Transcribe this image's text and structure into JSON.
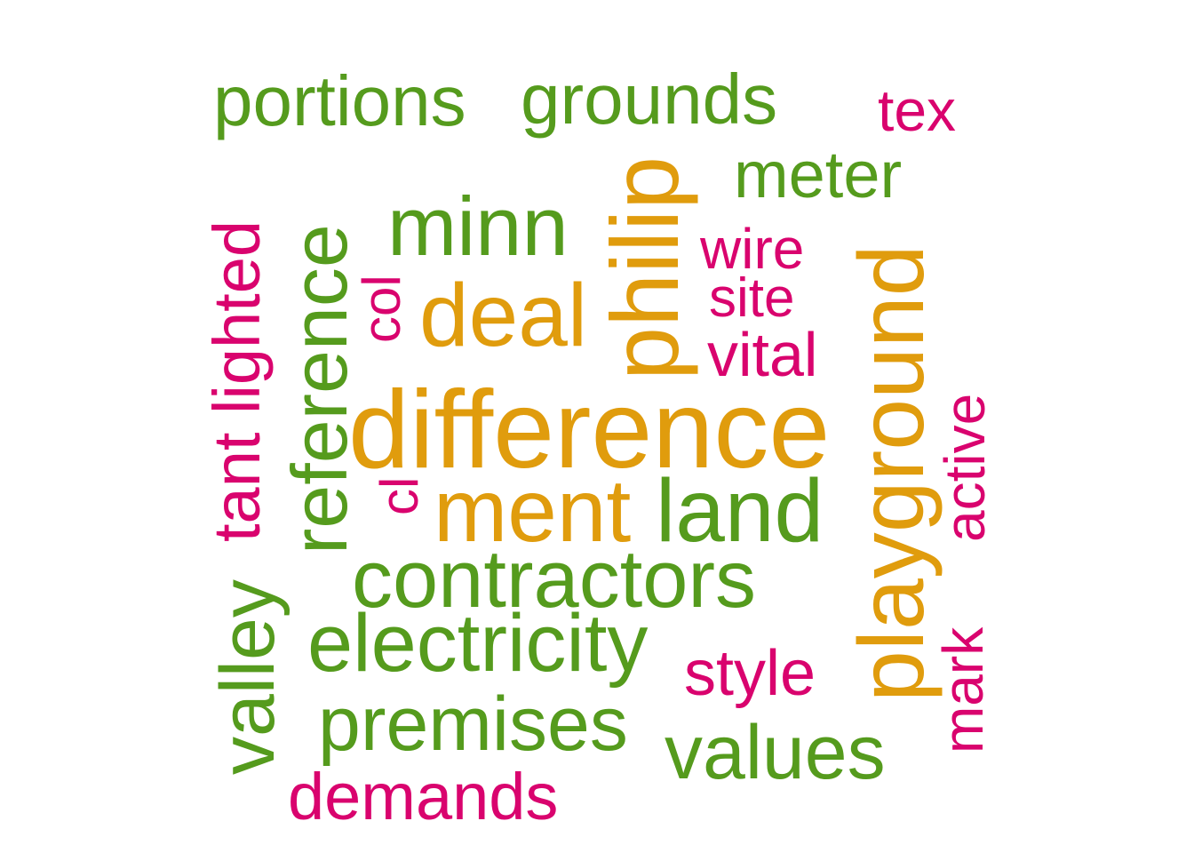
{
  "palette": {
    "green": "#559b1d",
    "orange": "#e09c0d",
    "magenta": "#d9036e"
  },
  "words": {
    "portions": "portions",
    "grounds": "grounds",
    "tex": "tex",
    "meter": "meter",
    "minn": "minn",
    "philip": "philip",
    "wire": "wire",
    "site": "site",
    "vital": "vital",
    "deal": "deal",
    "col": "col",
    "reference": "reference",
    "tant_lighted": "tant lighted",
    "difference": "difference",
    "cl": "cl",
    "ment": "ment",
    "land": "land",
    "playground": "playground",
    "active": "active",
    "contractors": "contractors",
    "electricity": "electricity",
    "style": "style",
    "mark": "mark",
    "valley": "valley",
    "premises": "premises",
    "values": "values",
    "demands": "demands"
  }
}
